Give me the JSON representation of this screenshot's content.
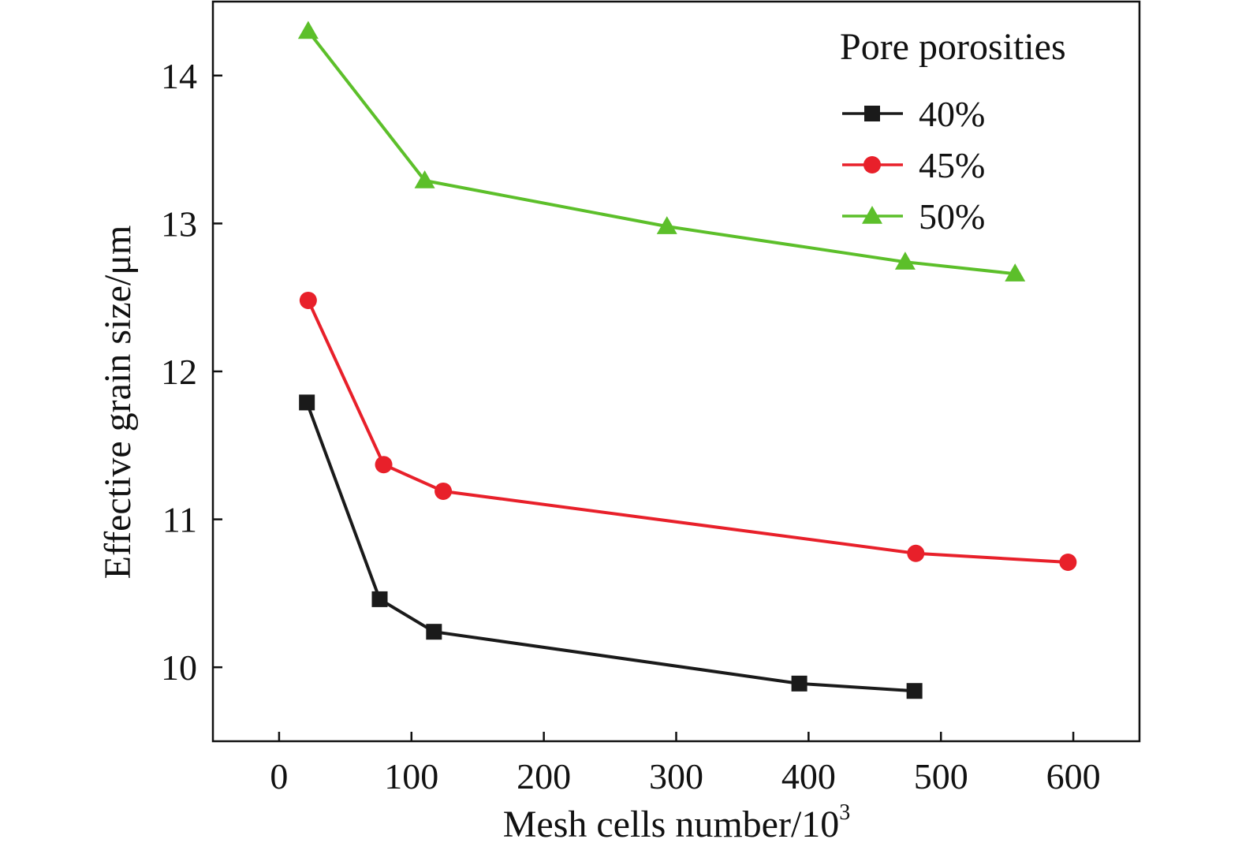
{
  "chart_data": {
    "type": "line",
    "xlabel": "Mesh cells number/10",
    "xlabel_sup": "3",
    "ylabel": "Effective grain size/μm",
    "xlim": [
      -50,
      650
    ],
    "ylim": [
      9.5,
      14.5
    ],
    "x_ticks": [
      0,
      100,
      200,
      300,
      400,
      500,
      600
    ],
    "y_ticks": [
      10,
      11,
      12,
      13,
      14
    ],
    "legend": {
      "title": "Pore porosities",
      "position": "top-right"
    },
    "series": [
      {
        "name": "40%",
        "color": "#1a1a1a",
        "marker": "square",
        "x": [
          21,
          76,
          117,
          393,
          480
        ],
        "y": [
          11.79,
          10.46,
          10.24,
          9.89,
          9.84
        ]
      },
      {
        "name": "45%",
        "color": "#e8202a",
        "marker": "circle",
        "x": [
          22,
          79,
          124,
          481,
          596
        ],
        "y": [
          12.48,
          11.37,
          11.19,
          10.77,
          10.71
        ]
      },
      {
        "name": "50%",
        "color": "#5cbf2a",
        "marker": "triangle",
        "x": [
          22,
          110,
          293,
          473,
          556
        ],
        "y": [
          14.3,
          13.29,
          12.98,
          12.74,
          12.66
        ]
      }
    ]
  }
}
